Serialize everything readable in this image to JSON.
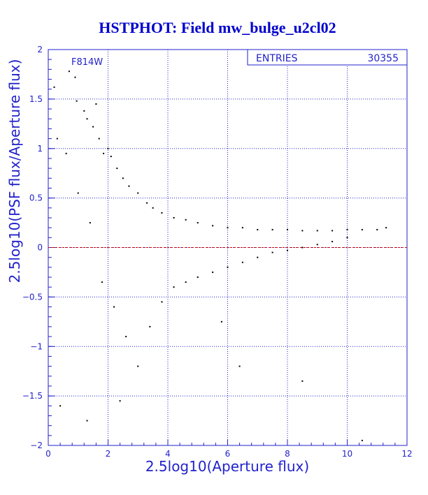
{
  "chart_data": {
    "type": "scatter",
    "title": "HSTPHOT: Field mw_bulge_u2cl02",
    "xlabel": "2.5log10(Aperture flux)",
    "ylabel": "2.5log10(PSF flux/Aperture flux)",
    "xlim": [
      0,
      12
    ],
    "ylim": [
      -2,
      2
    ],
    "x_ticks": [
      "0",
      "2",
      "4",
      "6",
      "8",
      "10",
      "12"
    ],
    "y_ticks": [
      "-2",
      "-1.5",
      "-1",
      "-0.5",
      "0",
      "0.5",
      "1",
      "1.5",
      "2"
    ],
    "grid": true,
    "reference_line_y": 0,
    "filter_label": "F814W",
    "stats": {
      "label": "ENTRIES",
      "value": "30355"
    },
    "series": [
      {
        "points": [
          [
            0.9,
            1.72
          ],
          [
            0.95,
            1.48
          ],
          [
            1.2,
            1.38
          ],
          [
            1.3,
            1.3
          ],
          [
            1.5,
            1.22
          ],
          [
            1.6,
            1.45
          ],
          [
            1.7,
            1.1
          ],
          [
            1.85,
            0.95
          ],
          [
            2.0,
            1.0
          ],
          [
            2.1,
            0.92
          ],
          [
            2.3,
            0.8
          ],
          [
            2.5,
            0.7
          ],
          [
            2.7,
            0.62
          ],
          [
            3.0,
            0.55
          ],
          [
            3.3,
            0.45
          ],
          [
            3.5,
            0.4
          ],
          [
            3.8,
            0.35
          ],
          [
            4.2,
            0.3
          ],
          [
            4.6,
            0.28
          ],
          [
            5.0,
            0.25
          ],
          [
            5.5,
            0.22
          ],
          [
            6.0,
            0.2
          ],
          [
            6.5,
            0.2
          ],
          [
            7.0,
            0.18
          ],
          [
            7.5,
            0.18
          ],
          [
            8.0,
            0.18
          ],
          [
            8.5,
            0.17
          ],
          [
            9.0,
            0.17
          ],
          [
            9.5,
            0.17
          ],
          [
            10.0,
            0.18
          ],
          [
            10.5,
            0.18
          ],
          [
            11.0,
            0.18
          ],
          [
            11.3,
            0.2
          ],
          [
            0.3,
            1.1
          ],
          [
            0.6,
            0.95
          ],
          [
            1.0,
            0.55
          ],
          [
            1.4,
            0.25
          ],
          [
            1.8,
            -0.35
          ],
          [
            2.2,
            -0.6
          ],
          [
            2.6,
            -0.9
          ],
          [
            3.0,
            -1.2
          ],
          [
            3.4,
            -0.8
          ],
          [
            3.8,
            -0.55
          ],
          [
            4.2,
            -0.4
          ],
          [
            4.6,
            -0.35
          ],
          [
            5.0,
            -0.3
          ],
          [
            5.5,
            -0.25
          ],
          [
            6.0,
            -0.2
          ],
          [
            6.5,
            -0.15
          ],
          [
            7.0,
            -0.1
          ],
          [
            7.5,
            -0.05
          ],
          [
            8.0,
            -0.03
          ],
          [
            8.5,
            0.0
          ],
          [
            9.0,
            0.03
          ],
          [
            9.5,
            0.06
          ],
          [
            10.0,
            0.1
          ],
          [
            2.4,
            -1.55
          ],
          [
            1.3,
            -1.75
          ],
          [
            0.4,
            -1.6
          ],
          [
            5.8,
            -0.75
          ],
          [
            6.4,
            -1.2
          ],
          [
            8.5,
            -1.35
          ],
          [
            10.5,
            -1.95
          ],
          [
            0.2,
            1.62
          ],
          [
            0.7,
            1.78
          ]
        ]
      }
    ]
  }
}
